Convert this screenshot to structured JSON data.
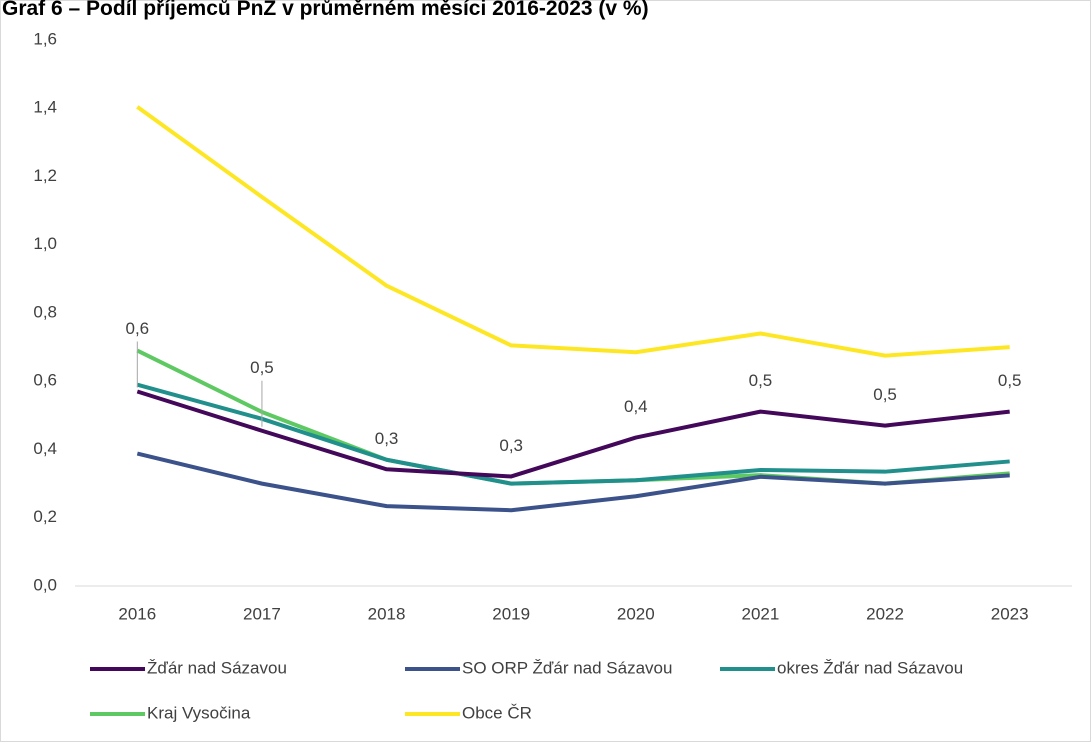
{
  "chart_data": {
    "type": "line",
    "title": "Graf 6 – Podíl příjemců PnZ v průměrném měsíci 2016-2023 (v %)",
    "categories": [
      "2016",
      "2017",
      "2018",
      "2019",
      "2020",
      "2021",
      "2022",
      "2023"
    ],
    "ylim": [
      0,
      1.6
    ],
    "yticks": [
      {
        "value": 0,
        "label": "0,0"
      },
      {
        "value": 0.2,
        "label": "0,2"
      },
      {
        "value": 0.4,
        "label": "0,4"
      },
      {
        "value": 0.6,
        "label": "0,6"
      },
      {
        "value": 0.8,
        "label": "0,8"
      },
      {
        "value": 1.0,
        "label": "1,0"
      },
      {
        "value": 1.2,
        "label": "1,2"
      },
      {
        "value": 1.4,
        "label": "1,4"
      },
      {
        "value": 1.6,
        "label": "1,6"
      }
    ],
    "grid": false,
    "legend": "bottom",
    "series": [
      {
        "name": "Žďár nad Sázavou",
        "color": "#44085a",
        "values": [
          0.57,
          0.455,
          0.342,
          0.321,
          0.435,
          0.511,
          0.47,
          0.511
        ],
        "value_labels": [
          "0,6",
          "0,5",
          "0,3",
          "0,3",
          "0,4",
          "0,5",
          "0,5",
          "0,5"
        ]
      },
      {
        "name": "SO ORP Žďár nad Sázavou",
        "color": "#3b528b",
        "values": [
          0.388,
          0.3,
          0.234,
          0.222,
          0.263,
          0.32,
          0.3,
          0.324
        ]
      },
      {
        "name": "okres Žďár nad Sázavou",
        "color": "#21908c",
        "values": [
          0.59,
          0.49,
          0.37,
          0.3,
          0.31,
          0.34,
          0.335,
          0.365
        ]
      },
      {
        "name": "Kraj Vysočina",
        "color": "#5ec962",
        "values": [
          0.69,
          0.51,
          0.37,
          0.3,
          0.31,
          0.325,
          0.3,
          0.33
        ]
      },
      {
        "name": "Obce ČR",
        "color": "#fde725",
        "values": [
          1.404,
          1.14,
          0.88,
          0.705,
          0.685,
          0.74,
          0.675,
          0.7
        ]
      }
    ]
  }
}
